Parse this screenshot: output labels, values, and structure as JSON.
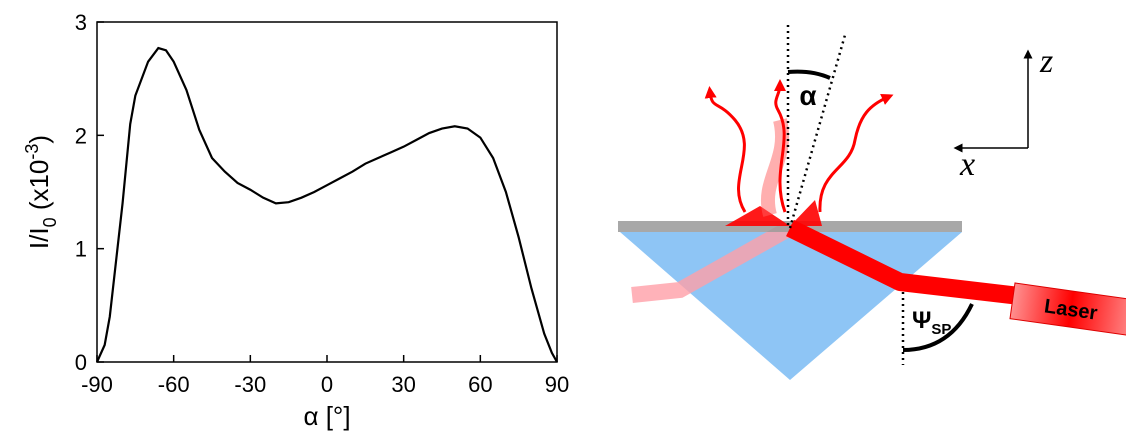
{
  "chart_data": {
    "type": "line",
    "x": [
      -90,
      -87,
      -85,
      -80,
      -77,
      -75,
      -70,
      -66,
      -63,
      -60,
      -55,
      -50,
      -45,
      -40,
      -35,
      -30,
      -25,
      -20,
      -15,
      -10,
      -5,
      0,
      5,
      10,
      15,
      20,
      25,
      30,
      35,
      40,
      45,
      50,
      55,
      60,
      65,
      70,
      75,
      80,
      85,
      88,
      90
    ],
    "values": [
      0,
      0.15,
      0.4,
      1.4,
      2.1,
      2.35,
      2.65,
      2.77,
      2.75,
      2.65,
      2.4,
      2.05,
      1.8,
      1.68,
      1.58,
      1.52,
      1.45,
      1.4,
      1.41,
      1.45,
      1.5,
      1.56,
      1.62,
      1.68,
      1.75,
      1.8,
      1.85,
      1.9,
      1.96,
      2.02,
      2.06,
      2.08,
      2.06,
      1.98,
      1.8,
      1.5,
      1.1,
      0.65,
      0.25,
      0.08,
      0
    ],
    "color": "#000000",
    "xlim": [
      -90,
      90
    ],
    "xticks": [
      -90,
      -60,
      -30,
      0,
      30,
      60,
      90
    ],
    "ylim": [
      0,
      3
    ],
    "yticks": [
      0,
      1,
      2,
      3
    ],
    "xlabel": "α [°]",
    "ylabel": [
      "I/I",
      "0",
      " (x10",
      "-3",
      ")"
    ]
  },
  "diagram": {
    "alpha": "α",
    "psi": "Ψ",
    "psi_sub": "SP",
    "laser": "Laser",
    "axis_z": "z",
    "axis_x": "x"
  }
}
